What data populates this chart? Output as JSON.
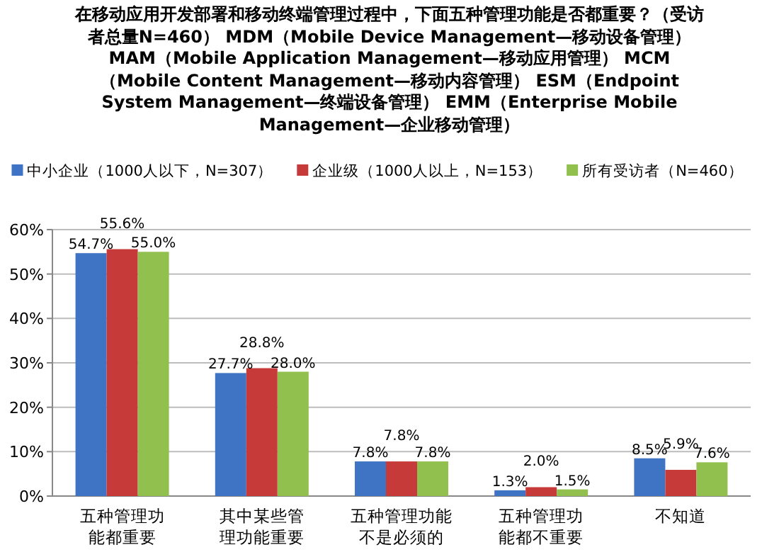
{
  "chart_data": {
    "type": "bar",
    "title": "在移动应用开发部署和移动终端管理过程中，下面五种管理功能是否都重要？（受访者总量N=460） MDM（Mobile Device Management—移动设备管理） MAM（Mobile Application Management—移动应用管理） MCM（Mobile Content Management—移动内容管理） ESM（Endpoint System Management—终端设备管理） EMM（Enterprise Mobile Management—企业移动管理）",
    "categories": [
      "五种管理功能都重要",
      "其中某些管理功能重要",
      "五种管理功能不是必须的",
      "五种管理功能都不重要",
      "不知道"
    ],
    "series": [
      {
        "name": "中小企业（1000人以下，N=307）",
        "color": "#3f73c4",
        "values": [
          54.7,
          27.7,
          7.8,
          1.3,
          8.5
        ],
        "value_labels": [
          "54.7%",
          "27.7%",
          "7.8%",
          "1.3%",
          "8.5%"
        ]
      },
      {
        "name": "企业级（1000人以上，N=153）",
        "color": "#c73a3a",
        "values": [
          55.6,
          28.8,
          7.8,
          2.0,
          5.9
        ],
        "value_labels": [
          "55.6%",
          "28.8%",
          "7.8%",
          "2.0%",
          "5.9%"
        ]
      },
      {
        "name": "所有受访者（N=460）",
        "color": "#92c04e",
        "values": [
          55.0,
          28.0,
          7.8,
          1.5,
          7.6
        ],
        "value_labels": [
          "55.0%",
          "28.0%",
          "7.8%",
          "1.5%",
          "7.6%"
        ]
      }
    ],
    "ylim": [
      0,
      60
    ],
    "yticks": [
      {
        "value": 0,
        "label": "0%"
      },
      {
        "value": 10,
        "label": "10%"
      },
      {
        "value": 20,
        "label": "20%"
      },
      {
        "value": 30,
        "label": "30%"
      },
      {
        "value": 40,
        "label": "40%"
      },
      {
        "value": 50,
        "label": "50%"
      },
      {
        "value": 60,
        "label": "60%"
      }
    ],
    "grid": "y",
    "legend": "top"
  }
}
